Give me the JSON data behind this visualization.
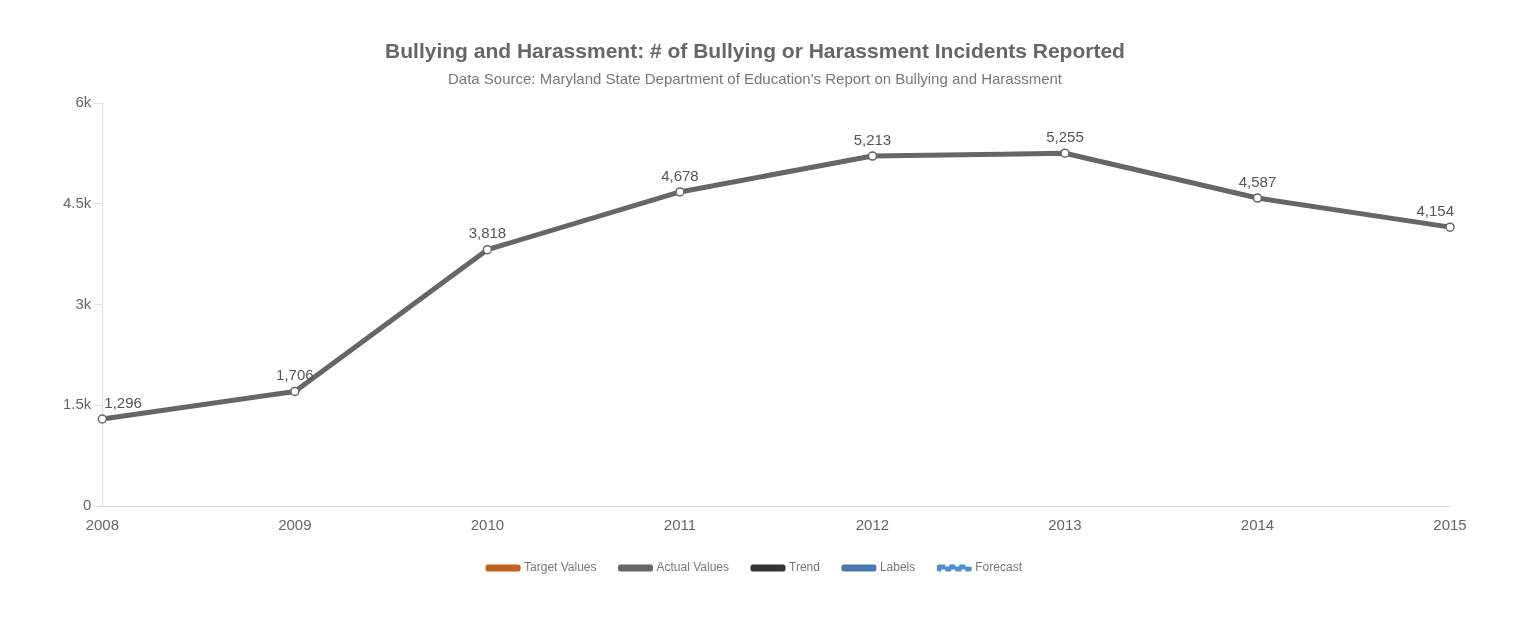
{
  "chart_data": {
    "type": "line",
    "title": "Bullying and Harassment: # of Bullying or Harassment Incidents Reported",
    "subtitle": "Data Source: Maryland State Department of Education's Report on Bullying and Harassment",
    "categories": [
      "2008",
      "2009",
      "2010",
      "2011",
      "2012",
      "2013",
      "2014",
      "2015"
    ],
    "series": [
      {
        "name": "Target Values",
        "color": "#c0621e",
        "values": [
          null,
          null,
          null,
          null,
          null,
          null,
          null,
          null
        ],
        "marker": "circle"
      },
      {
        "name": "Actual Values",
        "color": "#666666",
        "values": [
          1296,
          1706,
          3818,
          4678,
          5213,
          5255,
          4587,
          4154
        ],
        "value_labels": [
          "1,296",
          "1,706",
          "3,818",
          "4,678",
          "5,213",
          "5,255",
          "4,587",
          "4,154"
        ],
        "marker": "circle"
      },
      {
        "name": "Trend",
        "color": "#333333",
        "values": [
          null,
          null,
          null,
          null,
          null,
          null,
          null,
          null
        ],
        "marker": "none"
      },
      {
        "name": "Labels",
        "color": "#4a78b0",
        "values": [
          null,
          null,
          null,
          null,
          null,
          null,
          null,
          null
        ],
        "marker": "none"
      },
      {
        "name": "Forecast",
        "color": "#4a8fd0",
        "values": [
          null,
          null,
          null,
          null,
          null,
          null,
          null,
          null
        ],
        "marker": "none",
        "line_style": "dashed"
      }
    ],
    "ylim": [
      0,
      6000
    ],
    "yticks": [
      0,
      {
        "value": 1500,
        "label": "1.5k"
      },
      {
        "value": 3000,
        "label": "3k"
      },
      {
        "value": 4500,
        "label": "4.5k"
      },
      {
        "value": 6000,
        "label": "6k"
      }
    ],
    "grid": false,
    "legend": "bottom"
  }
}
